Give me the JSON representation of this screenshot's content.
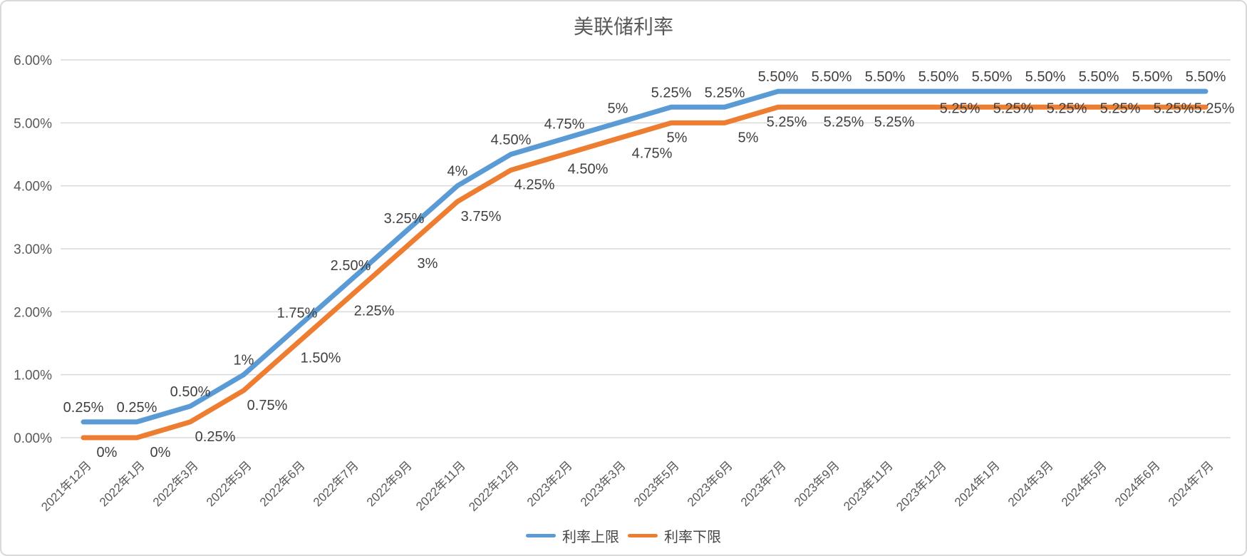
{
  "chart_data": {
    "type": "line",
    "title": "美联储利率",
    "categories": [
      "2021年12月",
      "2022年1月",
      "2022年3月",
      "2022年5月",
      "2022年6月",
      "2022年7月",
      "2022年9月",
      "2022年11月",
      "2022年12月",
      "2023年2月",
      "2023年3月",
      "2023年5月",
      "2023年6月",
      "2023年7月",
      "2023年9月",
      "2023年11月",
      "2023年12月",
      "2024年1月",
      "2024年3月",
      "2024年5月",
      "2024年6月",
      "2024年7月"
    ],
    "series": [
      {
        "name": "利率上限",
        "color": "#5B9BD5",
        "values": [
          0.25,
          0.25,
          0.5,
          1,
          1.75,
          2.5,
          3.25,
          4,
          4.5,
          4.75,
          5,
          5.25,
          5.25,
          5.5,
          5.5,
          5.5,
          5.5,
          5.5,
          5.5,
          5.5,
          5.5,
          5.5
        ],
        "labels": [
          "0.25%",
          "0.25%",
          "0.50%",
          "1%",
          "1.75%",
          "2.50%",
          "3.25%",
          "4%",
          "4.50%",
          "4.75%",
          "5%",
          "5.25%",
          "5.25%",
          "5.50%",
          "5.50%",
          "5.50%",
          "5.50%",
          "5.50%",
          "5.50%",
          "5.50%",
          "5.50%",
          "5.50%"
        ]
      },
      {
        "name": "利率下限",
        "color": "#ED7D31",
        "values": [
          0,
          0,
          0.25,
          0.75,
          1.5,
          2.25,
          3,
          3.75,
          4.25,
          4.5,
          4.75,
          5,
          5,
          5.25,
          5.25,
          5.25,
          5.25,
          5.25,
          5.25,
          5.25,
          5.25,
          5.25
        ],
        "labels": [
          "0%",
          "0%",
          "0.25%",
          "0.75%",
          "1.50%",
          "2.25%",
          "3%",
          "3.75%",
          "4.25%",
          "4.50%",
          "4.75%",
          "5%",
          "5%",
          "5.25%",
          "5.25%",
          "5.25%",
          "5.25%",
          "5.25%",
          "5.25%",
          "5.25%",
          "5.25%",
          "5.25%"
        ]
      }
    ],
    "y_axis": {
      "min": 0,
      "max": 6,
      "ticks": [
        {
          "label": "6.00%",
          "value": 6
        },
        {
          "label": "5.00%",
          "value": 5
        },
        {
          "label": "4.00%",
          "value": 4
        },
        {
          "label": "3.00%",
          "value": 3
        },
        {
          "label": "2.00%",
          "value": 2
        },
        {
          "label": "1.00%",
          "value": 1
        },
        {
          "label": "0.00%",
          "value": 0
        }
      ]
    },
    "grid": true,
    "legend_position": "bottom",
    "colors": {
      "gridline": "#D9D9D9",
      "axis_text": "#595959",
      "data_label": "#404040",
      "title_text": "#595959",
      "border": "#D9D9D9"
    }
  }
}
